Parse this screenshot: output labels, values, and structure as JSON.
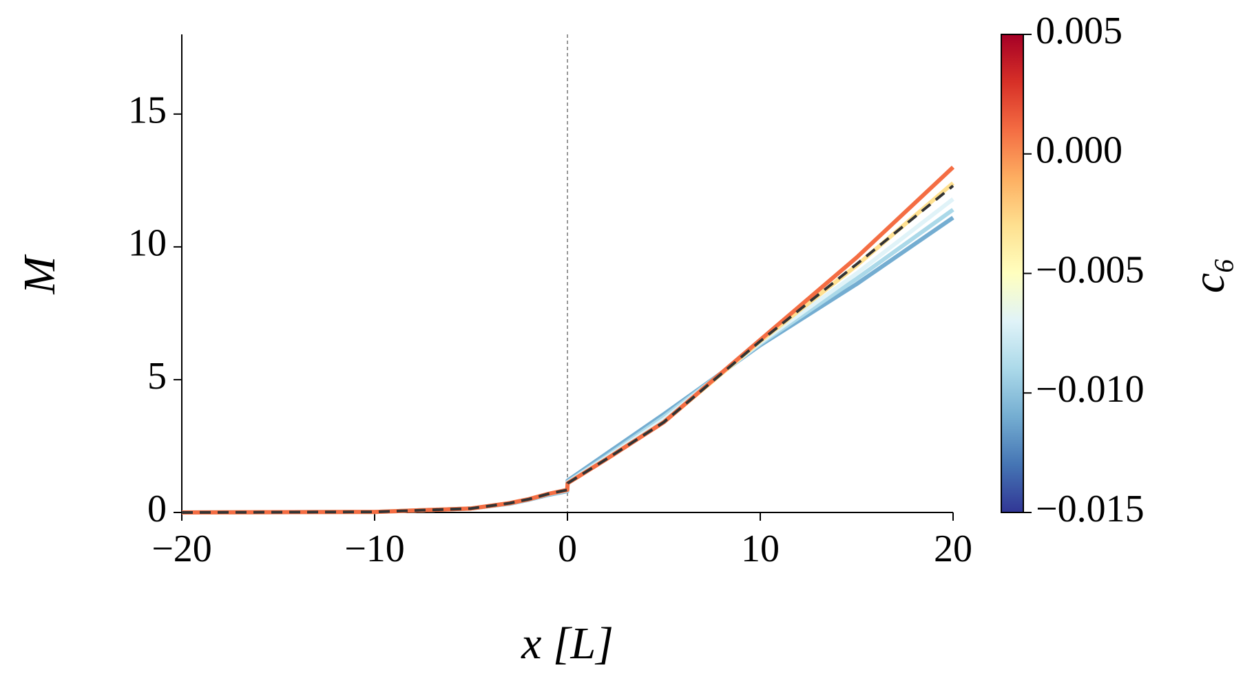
{
  "chart_data": {
    "type": "line",
    "xlabel": "x [L]",
    "ylabel": "M",
    "xlim": [
      -20,
      20
    ],
    "ylim": [
      0,
      18
    ],
    "xticks": [
      {
        "value": -20,
        "label": "−20"
      },
      {
        "value": -10,
        "label": "−10"
      },
      0,
      10,
      20
    ],
    "yticks": [
      0,
      5,
      10,
      15
    ],
    "vline": 0,
    "x": [
      -20,
      -10,
      -5,
      -3,
      -2,
      -1,
      -0.01,
      0.01,
      2,
      5,
      10,
      15,
      20
    ],
    "series": [
      {
        "color": "#74add1",
        "values": [
          0,
          0.02,
          0.15,
          0.33,
          0.48,
          0.66,
          0.8,
          1.2,
          2.2,
          3.7,
          6.3,
          8.6,
          11.1
        ]
      },
      {
        "color": "#abd9e9",
        "values": [
          0,
          0.02,
          0.15,
          0.34,
          0.49,
          0.68,
          0.82,
          1.15,
          2.1,
          3.6,
          6.35,
          8.8,
          11.4
        ]
      },
      {
        "color": "#e0f3f8",
        "values": [
          0,
          0.02,
          0.15,
          0.35,
          0.5,
          0.7,
          0.84,
          1.12,
          2.05,
          3.5,
          6.4,
          9.0,
          11.8
        ]
      },
      {
        "color": "#fee090",
        "values": [
          0,
          0.02,
          0.15,
          0.35,
          0.5,
          0.7,
          0.85,
          1.1,
          2.0,
          3.4,
          6.45,
          9.3,
          12.4
        ]
      },
      {
        "color": "#f46d43",
        "values": [
          0,
          0.02,
          0.15,
          0.35,
          0.5,
          0.7,
          0.85,
          1.1,
          2.0,
          3.4,
          6.5,
          9.6,
          13.0
        ]
      },
      {
        "color": "#333333",
        "linestyle": "dashed",
        "values": [
          0,
          0.02,
          0.15,
          0.35,
          0.5,
          0.7,
          0.85,
          1.1,
          2.0,
          3.4,
          6.45,
          9.35,
          12.3
        ]
      }
    ],
    "colorbar": {
      "label": "c₆",
      "lim": [
        -0.015,
        0.005
      ],
      "ticks": [
        {
          "value": 0.005,
          "label": "0.005"
        },
        {
          "value": 0,
          "label": "0.000"
        },
        {
          "value": -0.005,
          "label": "−0.005"
        },
        {
          "value": -0.01,
          "label": "−0.010"
        },
        {
          "value": -0.015,
          "label": "−0.015"
        }
      ],
      "colormap": [
        "#313695",
        "#4575b4",
        "#74add1",
        "#abd9e9",
        "#e0f3f8",
        "#ffffbf",
        "#fee090",
        "#fdae61",
        "#f46d43",
        "#d73027",
        "#a50026"
      ]
    }
  }
}
